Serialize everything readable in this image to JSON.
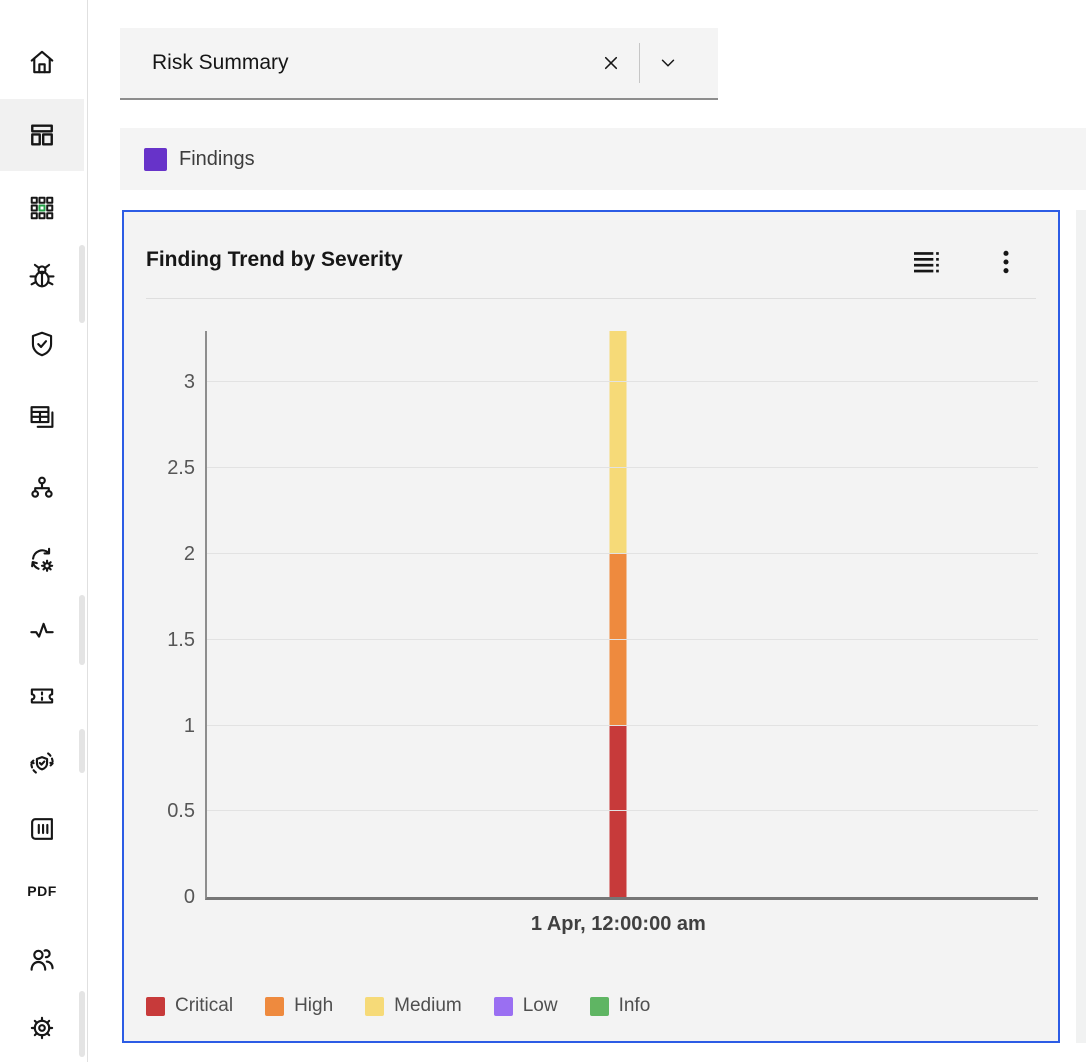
{
  "toolbar": {
    "title": "Risk Summary",
    "icons": [
      "close-icon",
      "chevron-down-icon"
    ]
  },
  "findings": {
    "label": "Findings",
    "swatch_color": "#6733c9"
  },
  "sidebar": {
    "items": [
      {
        "name": "home"
      },
      {
        "name": "dashboards",
        "active": true
      },
      {
        "name": "app-grid"
      },
      {
        "name": "bug"
      },
      {
        "name": "shield-check"
      },
      {
        "name": "data-tables"
      },
      {
        "name": "hierarchy"
      },
      {
        "name": "sync-settings"
      },
      {
        "name": "activity"
      },
      {
        "name": "ticket"
      },
      {
        "name": "shield-refresh"
      },
      {
        "name": "report-columns"
      },
      {
        "name": "pdf",
        "label": "PDF"
      },
      {
        "name": "users"
      },
      {
        "name": "settings"
      }
    ]
  },
  "card": {
    "title": "Finding Trend by Severity",
    "border_color": "#2c5ce5",
    "background": "#f3f3f3",
    "icons": [
      "data-table-icon",
      "overflow-menu-icon"
    ]
  },
  "chart_data": {
    "type": "bar",
    "stacked": true,
    "title": "Finding Trend by Severity",
    "categories": [
      "1 Apr, 12:00:00 am"
    ],
    "series": [
      {
        "name": "Critical",
        "color": "#c73a3a",
        "values": [
          1
        ]
      },
      {
        "name": "High",
        "color": "#ee8a3e",
        "values": [
          1
        ]
      },
      {
        "name": "Medium",
        "color": "#f6da78",
        "values": [
          1.3
        ]
      },
      {
        "name": "Low",
        "color": "#9a6ff2",
        "values": [
          0
        ]
      },
      {
        "name": "Info",
        "color": "#5fb563",
        "values": [
          0
        ]
      }
    ],
    "xlabel": "",
    "ylabel": "",
    "ylim": [
      0,
      3.3
    ],
    "y_ticks": [
      0,
      0.5,
      1,
      1.5,
      2,
      2.5,
      3
    ],
    "grid": "horizontal",
    "legend_position": "bottom"
  }
}
